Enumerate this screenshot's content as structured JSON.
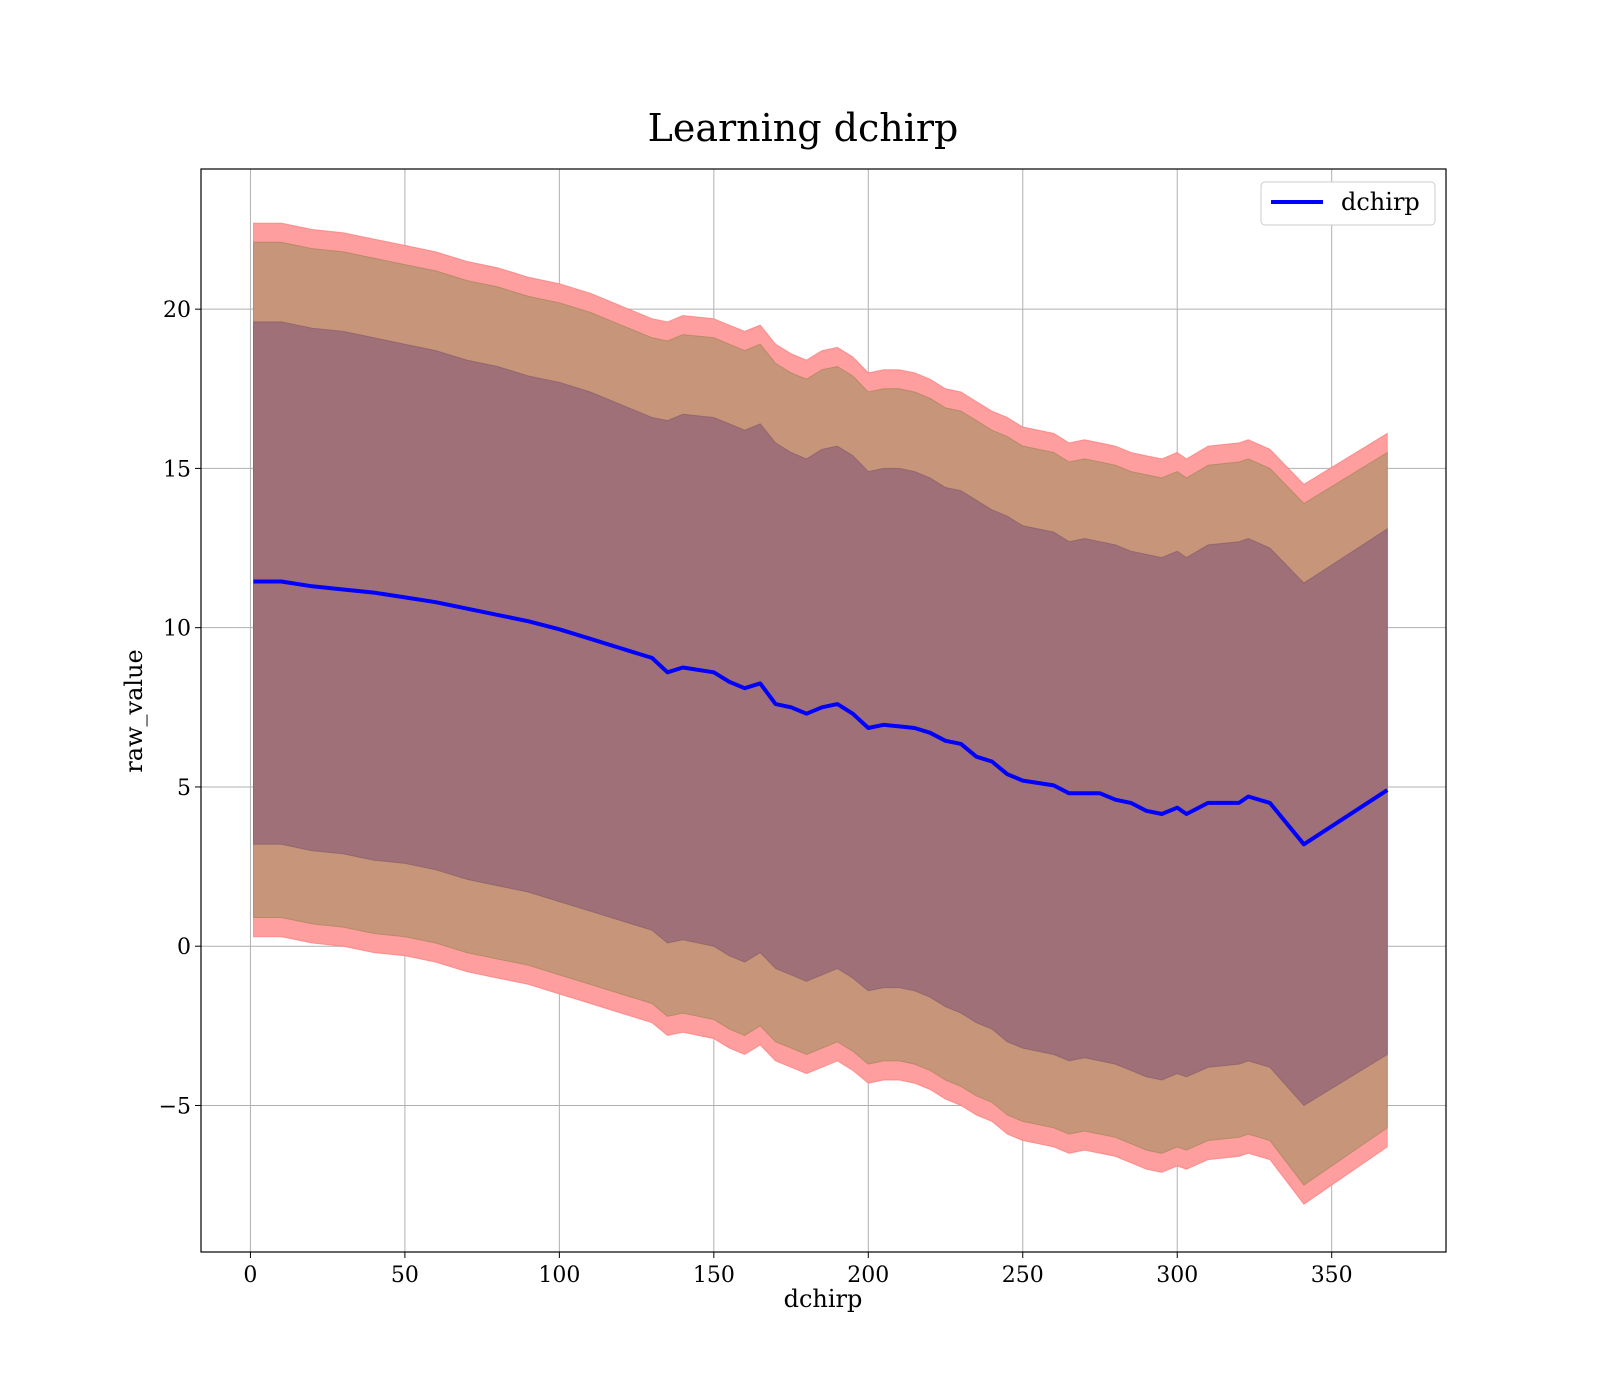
{
  "chart_data": {
    "type": "line",
    "title": "Learning dchirp",
    "xlabel": "dchirp",
    "ylabel": "raw_value",
    "xlim": [
      -16,
      387
    ],
    "ylim": [
      -9.6,
      24.4
    ],
    "xticks": [
      0,
      50,
      100,
      150,
      200,
      250,
      300,
      350
    ],
    "xtick_labels": [
      "0",
      "50",
      "100",
      "150",
      "200",
      "250",
      "300",
      "350"
    ],
    "yticks": [
      -5,
      0,
      5,
      10,
      15,
      20
    ],
    "ytick_labels": [
      "−5",
      "0",
      "5",
      "10",
      "15",
      "20"
    ],
    "grid": true,
    "legend": {
      "position": "top-right",
      "entries": [
        "dchirp"
      ]
    },
    "colors": {
      "line": "#0000ff",
      "outer_band": "#ff9e9e",
      "middle_band": "#c7967a",
      "inner_band": "#a07078",
      "grid": "#b0b0b0"
    },
    "series": [
      {
        "name": "dchirp",
        "x": [
          1,
          10,
          20,
          30,
          40,
          50,
          60,
          70,
          80,
          90,
          100,
          110,
          120,
          130,
          135,
          140,
          150,
          155,
          160,
          165,
          170,
          175,
          180,
          185,
          190,
          195,
          200,
          205,
          210,
          215,
          220,
          225,
          230,
          235,
          240,
          245,
          250,
          260,
          265,
          270,
          275,
          280,
          285,
          290,
          295,
          300,
          303,
          310,
          320,
          323,
          330,
          341,
          368
        ],
        "y": [
          11.45,
          11.45,
          11.3,
          11.2,
          11.1,
          10.95,
          10.8,
          10.6,
          10.4,
          10.2,
          9.95,
          9.65,
          9.35,
          9.05,
          8.6,
          8.75,
          8.6,
          8.3,
          8.1,
          8.25,
          7.6,
          7.5,
          7.3,
          7.5,
          7.6,
          7.3,
          6.85,
          6.95,
          6.9,
          6.85,
          6.7,
          6.45,
          6.35,
          5.95,
          5.8,
          5.4,
          5.2,
          5.05,
          4.8,
          4.8,
          4.8,
          4.6,
          4.5,
          4.25,
          4.15,
          4.35,
          4.15,
          4.5,
          4.5,
          4.7,
          4.5,
          3.2,
          4.9
        ],
        "bands": [
          {
            "level": "outer",
            "upper": [
              22.7,
              22.7,
              22.5,
              22.4,
              22.2,
              22.0,
              21.8,
              21.5,
              21.3,
              21.0,
              20.8,
              20.5,
              20.1,
              19.7,
              19.6,
              19.8,
              19.7,
              19.5,
              19.3,
              19.5,
              18.9,
              18.6,
              18.4,
              18.7,
              18.8,
              18.5,
              18.0,
              18.1,
              18.1,
              18.0,
              17.8,
              17.5,
              17.4,
              17.1,
              16.8,
              16.6,
              16.3,
              16.1,
              15.8,
              15.9,
              15.8,
              15.7,
              15.5,
              15.4,
              15.3,
              15.5,
              15.3,
              15.7,
              15.8,
              15.9,
              15.6,
              14.5,
              16.1
            ],
            "lower": [
              0.3,
              0.3,
              0.1,
              0.0,
              -0.2,
              -0.3,
              -0.5,
              -0.8,
              -1.0,
              -1.2,
              -1.5,
              -1.8,
              -2.1,
              -2.4,
              -2.8,
              -2.7,
              -2.9,
              -3.2,
              -3.4,
              -3.1,
              -3.6,
              -3.8,
              -4.0,
              -3.8,
              -3.6,
              -3.9,
              -4.3,
              -4.2,
              -4.2,
              -4.3,
              -4.5,
              -4.8,
              -5.0,
              -5.3,
              -5.5,
              -5.9,
              -6.1,
              -6.3,
              -6.5,
              -6.4,
              -6.5,
              -6.6,
              -6.8,
              -7.0,
              -7.1,
              -6.9,
              -7.0,
              -6.7,
              -6.6,
              -6.5,
              -6.7,
              -8.1,
              -6.3
            ]
          },
          {
            "level": "middle",
            "upper": [
              22.1,
              22.1,
              21.9,
              21.8,
              21.6,
              21.4,
              21.2,
              20.9,
              20.7,
              20.4,
              20.2,
              19.9,
              19.5,
              19.1,
              19.0,
              19.2,
              19.1,
              18.9,
              18.7,
              18.9,
              18.3,
              18.0,
              17.8,
              18.1,
              18.2,
              17.9,
              17.4,
              17.5,
              17.5,
              17.4,
              17.2,
              16.9,
              16.8,
              16.5,
              16.2,
              16.0,
              15.7,
              15.5,
              15.2,
              15.3,
              15.2,
              15.1,
              14.9,
              14.8,
              14.7,
              14.9,
              14.7,
              15.1,
              15.2,
              15.3,
              15.0,
              13.9,
              15.5
            ],
            "lower": [
              0.9,
              0.9,
              0.7,
              0.6,
              0.4,
              0.3,
              0.1,
              -0.2,
              -0.4,
              -0.6,
              -0.9,
              -1.2,
              -1.5,
              -1.8,
              -2.2,
              -2.1,
              -2.3,
              -2.6,
              -2.8,
              -2.5,
              -3.0,
              -3.2,
              -3.4,
              -3.2,
              -3.0,
              -3.3,
              -3.7,
              -3.6,
              -3.6,
              -3.7,
              -3.9,
              -4.2,
              -4.4,
              -4.7,
              -4.9,
              -5.3,
              -5.5,
              -5.7,
              -5.9,
              -5.8,
              -5.9,
              -6.0,
              -6.2,
              -6.4,
              -6.5,
              -6.3,
              -6.4,
              -6.1,
              -6.0,
              -5.9,
              -6.1,
              -7.5,
              -5.7
            ]
          },
          {
            "level": "inner",
            "upper": [
              19.6,
              19.6,
              19.4,
              19.3,
              19.1,
              18.9,
              18.7,
              18.4,
              18.2,
              17.9,
              17.7,
              17.4,
              17.0,
              16.6,
              16.5,
              16.7,
              16.6,
              16.4,
              16.2,
              16.4,
              15.8,
              15.5,
              15.3,
              15.6,
              15.7,
              15.4,
              14.9,
              15.0,
              15.0,
              14.9,
              14.7,
              14.4,
              14.3,
              14.0,
              13.7,
              13.5,
              13.2,
              13.0,
              12.7,
              12.8,
              12.7,
              12.6,
              12.4,
              12.3,
              12.2,
              12.4,
              12.2,
              12.6,
              12.7,
              12.8,
              12.5,
              11.4,
              13.1
            ],
            "lower": [
              3.2,
              3.2,
              3.0,
              2.9,
              2.7,
              2.6,
              2.4,
              2.1,
              1.9,
              1.7,
              1.4,
              1.1,
              0.8,
              0.5,
              0.1,
              0.2,
              0.0,
              -0.3,
              -0.5,
              -0.2,
              -0.7,
              -0.9,
              -1.1,
              -0.9,
              -0.7,
              -1.0,
              -1.4,
              -1.3,
              -1.3,
              -1.4,
              -1.6,
              -1.9,
              -2.1,
              -2.4,
              -2.6,
              -3.0,
              -3.2,
              -3.4,
              -3.6,
              -3.5,
              -3.6,
              -3.7,
              -3.9,
              -4.1,
              -4.2,
              -4.0,
              -4.1,
              -3.8,
              -3.7,
              -3.6,
              -3.8,
              -5.0,
              -3.4
            ]
          }
        ]
      }
    ]
  }
}
